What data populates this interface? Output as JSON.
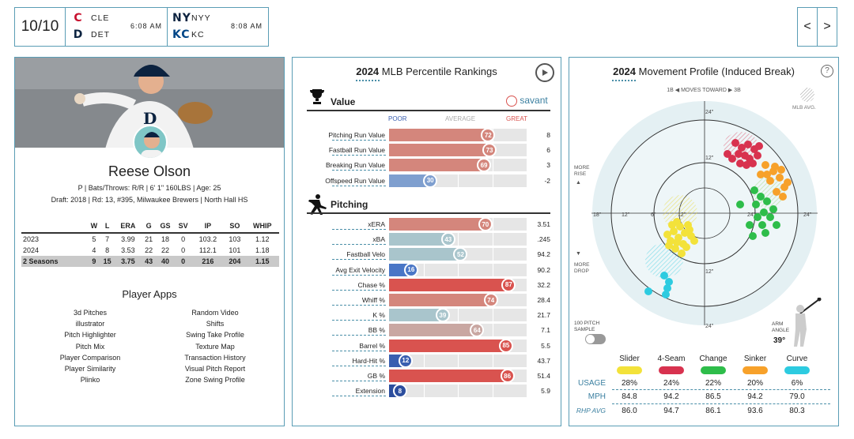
{
  "scoreboard": {
    "date": "10/10",
    "games": [
      {
        "away": "CLE",
        "home": "DET",
        "time": "6:08 AM"
      },
      {
        "away": "NYY",
        "home": "KC",
        "time": "8:08 AM"
      }
    ],
    "prev": "<",
    "next": ">"
  },
  "player": {
    "name": "Reese Olson",
    "info": "P | Bats/Throws: R/R | 6' 1\" 160LBS | Age: 25",
    "draft": "Draft: 2018 | Rd: 13, #395, Milwaukee Brewers | North Hall HS",
    "stats_headers": [
      "",
      "W",
      "L",
      "ERA",
      "G",
      "GS",
      "SV",
      "IP",
      "SO",
      "WHIP"
    ],
    "stats_rows": [
      [
        "2023",
        "5",
        "7",
        "3.99",
        "21",
        "18",
        "0",
        "103.2",
        "103",
        "1.12"
      ],
      [
        "2024",
        "4",
        "8",
        "3.53",
        "22",
        "22",
        "0",
        "112.1",
        "101",
        "1.18"
      ],
      [
        "2 Seasons",
        "9",
        "15",
        "3.75",
        "43",
        "40",
        "0",
        "216",
        "204",
        "1.15"
      ]
    ]
  },
  "apps": {
    "title": "Player Apps",
    "left": [
      "3d Pitches",
      "illustrator",
      "Pitch Highlighter",
      "Pitch Mix",
      "Player Comparison",
      "Player Similarity",
      "Plinko"
    ],
    "right": [
      "Random Video",
      "Shifts",
      "Swing Take Profile",
      "Texture Map",
      "Transaction History",
      "Visual Pitch Report",
      "Zone Swing Profile"
    ]
  },
  "percentiles": {
    "year": "2024",
    "title": "MLB Percentile Rankings",
    "value_section": "Value",
    "pitching_section": "Pitching",
    "savant": "savant",
    "scale": {
      "poor": "POOR",
      "average": "AVERAGE",
      "great": "GREAT"
    },
    "value_rows": [
      {
        "label": "Pitching Run Value",
        "pct": 72,
        "value": "8",
        "color": "#d4867c"
      },
      {
        "label": "Fastball Run Value",
        "pct": 73,
        "value": "6",
        "color": "#d4867c"
      },
      {
        "label": "Breaking Run Value",
        "pct": 69,
        "value": "3",
        "color": "#d4867c"
      },
      {
        "label": "Offspeed Run Value",
        "pct": 30,
        "value": "-2",
        "color": "#7f9fcf"
      }
    ],
    "pitching_rows": [
      {
        "label": "xERA",
        "pct": 70,
        "value": "3.51",
        "color": "#d4867c"
      },
      {
        "label": "xBA",
        "pct": 43,
        "value": ".245",
        "color": "#a9c5cc"
      },
      {
        "label": "Fastball Velo",
        "pct": 52,
        "value": "94.2",
        "color": "#a9c5cc"
      },
      {
        "label": "Avg Exit Velocity",
        "pct": 16,
        "value": "90.2",
        "color": "#4a76c6"
      },
      {
        "label": "Chase %",
        "pct": 87,
        "value": "32.2",
        "color": "#d9534f"
      },
      {
        "label": "Whiff %",
        "pct": 74,
        "value": "28.4",
        "color": "#d4867c"
      },
      {
        "label": "K %",
        "pct": 39,
        "value": "21.7",
        "color": "#a9c5cc"
      },
      {
        "label": "BB %",
        "pct": 64,
        "value": "7.1",
        "color": "#c9a7a2"
      },
      {
        "label": "Barrel %",
        "pct": 85,
        "value": "5.5",
        "color": "#d9534f"
      },
      {
        "label": "Hard-Hit %",
        "pct": 12,
        "value": "43.7",
        "color": "#3a5fb0"
      },
      {
        "label": "GB %",
        "pct": 86,
        "value": "51.4",
        "color": "#d9534f"
      },
      {
        "label": "Extension",
        "pct": 8,
        "value": "5.9",
        "color": "#2c4e9e"
      }
    ]
  },
  "movement": {
    "year": "2024",
    "title": "Movement Profile (Induced Break)",
    "help": "?",
    "toward": "1B ◀ MOVES TOWARD ▶ 3B",
    "mlb_avg": "MLB AVG.",
    "more_rise": "MORE RISE",
    "more_drop": "MORE DROP",
    "rings": [
      "24\"",
      "18\"",
      "12\"",
      "6\"",
      "12\"",
      "24\"",
      "24\"",
      "12\"",
      "12\"",
      "24\""
    ],
    "sample_label": "100 PITCH SAMPLE",
    "arm_angle_label": "ARM ANGLE",
    "arm_angle": "39°",
    "pitches": [
      {
        "name": "Slider",
        "usage": "28%",
        "mph": "84.8",
        "rhp": "86.0",
        "color": "#f3e23a"
      },
      {
        "name": "4-Seam",
        "usage": "24%",
        "mph": "94.2",
        "rhp": "94.7",
        "color": "#d8324f"
      },
      {
        "name": "Change",
        "usage": "22%",
        "mph": "86.5",
        "rhp": "86.1",
        "color": "#2ebd4a"
      },
      {
        "name": "Sinker",
        "usage": "20%",
        "mph": "94.2",
        "rhp": "93.6",
        "color": "#f7a12a"
      },
      {
        "name": "Curve",
        "usage": "6%",
        "mph": "79.0",
        "rhp": "80.3",
        "color": "#2dcbe0"
      }
    ],
    "row_labels": {
      "usage": "USAGE",
      "mph": "MPH",
      "rhp": "RHP AVG"
    }
  }
}
